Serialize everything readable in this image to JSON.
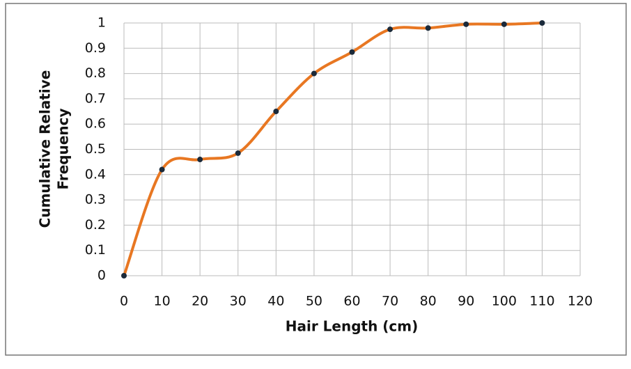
{
  "chart_data": {
    "type": "line",
    "xlabel": "Hair Length (cm)",
    "ylabel": [
      "Cumulative Relative",
      "Frequency"
    ],
    "x": [
      0,
      10,
      20,
      30,
      40,
      50,
      60,
      70,
      80,
      90,
      100,
      110
    ],
    "values": [
      0,
      0.42,
      0.46,
      0.485,
      0.65,
      0.8,
      0.885,
      0.975,
      0.98,
      0.995,
      0.995,
      1
    ],
    "color": "#e87722",
    "marker_color": "#1b2a3a",
    "xlim": [
      0,
      120
    ],
    "xticks": [
      0,
      10,
      20,
      30,
      40,
      50,
      60,
      70,
      80,
      90,
      100,
      110,
      120
    ],
    "ylim": [
      0,
      1
    ],
    "yticks": [
      0,
      0.1,
      0.2,
      0.3,
      0.4,
      0.5,
      0.6,
      0.7,
      0.8,
      0.9,
      1
    ],
    "grid": true
  }
}
